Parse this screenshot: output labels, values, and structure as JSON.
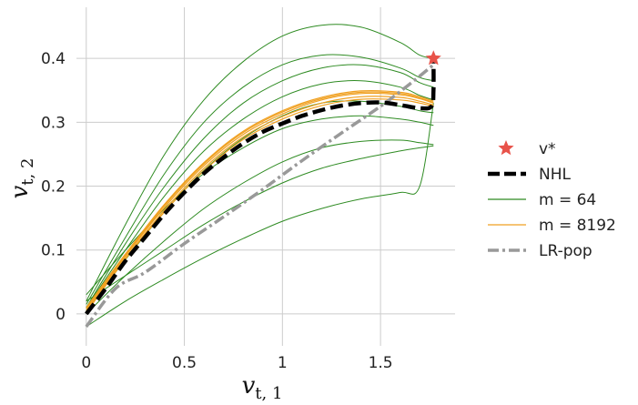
{
  "chart_data": {
    "type": "line",
    "title": "",
    "xlabel": "v_{t,1}",
    "ylabel": "v_{t,2}",
    "x_ticks": [
      "0",
      "0.5",
      "1",
      "1.5"
    ],
    "y_ticks": [
      "0",
      "0.1",
      "0.2",
      "0.3",
      "0.4"
    ],
    "xlim": [
      -0.05,
      1.88
    ],
    "ylim": [
      -0.05,
      0.48
    ],
    "grid": true,
    "legend_position": "right",
    "colors": {
      "star": "#e8534a",
      "nhl": "#000000",
      "m64": "#2e8b22",
      "m8192": "#f0a020",
      "lrpop": "#999999",
      "grid": "#cccccc"
    },
    "legend": [
      {
        "key": "star",
        "label": "v*"
      },
      {
        "key": "nhl",
        "label": "NHL"
      },
      {
        "key": "m64",
        "label": "m = 64"
      },
      {
        "key": "m8192",
        "label": "m = 8192"
      },
      {
        "key": "lrpop",
        "label": "LR-pop"
      }
    ],
    "star_point": {
      "x": 1.77,
      "y": 0.4
    },
    "nhl": {
      "x": [
        0.0,
        0.1,
        0.2,
        0.3,
        0.4,
        0.5,
        0.6,
        0.7,
        0.8,
        0.9,
        1.0,
        1.1,
        1.2,
        1.3,
        1.4,
        1.5,
        1.6,
        1.7,
        1.76,
        1.77,
        1.77
      ],
      "y": [
        0.0,
        0.04,
        0.083,
        0.12,
        0.157,
        0.19,
        0.22,
        0.245,
        0.267,
        0.285,
        0.298,
        0.31,
        0.319,
        0.326,
        0.33,
        0.331,
        0.327,
        0.322,
        0.325,
        0.35,
        0.4
      ]
    },
    "m8192_series": [
      {
        "x": [
          0.0,
          0.2,
          0.4,
          0.6,
          0.8,
          1.0,
          1.2,
          1.4,
          1.6,
          1.7,
          1.77
        ],
        "y": [
          0.005,
          0.09,
          0.167,
          0.232,
          0.281,
          0.313,
          0.335,
          0.345,
          0.343,
          0.337,
          0.33
        ]
      },
      {
        "x": [
          0.0,
          0.2,
          0.4,
          0.6,
          0.8,
          1.0,
          1.2,
          1.4,
          1.6,
          1.7,
          1.77
        ],
        "y": [
          0.01,
          0.094,
          0.172,
          0.237,
          0.286,
          0.318,
          0.339,
          0.349,
          0.347,
          0.34,
          0.333
        ]
      },
      {
        "x": [
          0.0,
          0.2,
          0.4,
          0.6,
          0.8,
          1.0,
          1.2,
          1.4,
          1.6,
          1.7,
          1.77
        ],
        "y": [
          0.003,
          0.087,
          0.163,
          0.228,
          0.277,
          0.309,
          0.33,
          0.34,
          0.339,
          0.333,
          0.327
        ]
      },
      {
        "x": [
          0.0,
          0.2,
          0.4,
          0.6,
          0.8,
          1.0,
          1.2,
          1.4,
          1.6,
          1.7,
          1.77
        ],
        "y": [
          0.008,
          0.092,
          0.17,
          0.235,
          0.284,
          0.316,
          0.337,
          0.347,
          0.345,
          0.338,
          0.331
        ]
      },
      {
        "x": [
          0.0,
          0.2,
          0.4,
          0.6,
          0.8,
          1.0,
          1.2,
          1.4,
          1.6,
          1.7,
          1.77
        ],
        "y": [
          0.002,
          0.086,
          0.16,
          0.224,
          0.273,
          0.305,
          0.326,
          0.336,
          0.335,
          0.33,
          0.325
        ]
      }
    ],
    "m64_series": [
      {
        "x": [
          0.0,
          0.2,
          0.4,
          0.6,
          0.8,
          1.0,
          1.2,
          1.4,
          1.6,
          1.7,
          1.77
        ],
        "y": [
          0.02,
          0.14,
          0.25,
          0.335,
          0.395,
          0.435,
          0.452,
          0.449,
          0.425,
          0.405,
          0.4
        ]
      },
      {
        "x": [
          0.0,
          0.2,
          0.4,
          0.6,
          0.8,
          1.0,
          1.2,
          1.4,
          1.6,
          1.7,
          1.77
        ],
        "y": [
          0.015,
          0.12,
          0.22,
          0.3,
          0.355,
          0.39,
          0.405,
          0.402,
          0.385,
          0.37,
          0.365
        ]
      },
      {
        "x": [
          0.0,
          0.2,
          0.4,
          0.6,
          0.8,
          1.0,
          1.2,
          1.4,
          1.6,
          1.7,
          1.77
        ],
        "y": [
          0.01,
          0.11,
          0.2,
          0.275,
          0.33,
          0.365,
          0.385,
          0.39,
          0.378,
          0.362,
          0.355
        ]
      },
      {
        "x": [
          0.0,
          0.2,
          0.4,
          0.6,
          0.8,
          1.0,
          1.2,
          1.4,
          1.6,
          1.7,
          1.77
        ],
        "y": [
          0.01,
          0.1,
          0.185,
          0.255,
          0.305,
          0.34,
          0.36,
          0.365,
          0.355,
          0.342,
          0.335
        ]
      },
      {
        "x": [
          0.0,
          0.2,
          0.4,
          0.6,
          0.8,
          1.0,
          1.2,
          1.4,
          1.6,
          1.7,
          1.77
        ],
        "y": [
          0.005,
          0.085,
          0.16,
          0.225,
          0.275,
          0.31,
          0.33,
          0.333,
          0.325,
          0.318,
          0.315
        ]
      },
      {
        "x": [
          0.0,
          0.2,
          0.4,
          0.6,
          0.8,
          1.0,
          1.2,
          1.4,
          1.6,
          1.7,
          1.77
        ],
        "y": [
          0.03,
          0.1,
          0.165,
          0.22,
          0.26,
          0.29,
          0.305,
          0.31,
          0.305,
          0.3,
          0.295
        ]
      },
      {
        "x": [
          0.0,
          0.2,
          0.4,
          0.6,
          0.8,
          1.0,
          1.2,
          1.4,
          1.6,
          1.7,
          1.77
        ],
        "y": [
          0.0,
          0.06,
          0.115,
          0.165,
          0.205,
          0.238,
          0.26,
          0.27,
          0.272,
          0.268,
          0.265
        ]
      },
      {
        "x": [
          0.0,
          0.2,
          0.4,
          0.6,
          0.8,
          1.0,
          1.2,
          1.4,
          1.6,
          1.7,
          1.77
        ],
        "y": [
          0.02,
          0.06,
          0.1,
          0.14,
          0.175,
          0.205,
          0.228,
          0.243,
          0.255,
          0.26,
          0.263
        ]
      },
      {
        "x": [
          0.0,
          0.2,
          0.4,
          0.6,
          0.8,
          1.0,
          1.2,
          1.4,
          1.6,
          1.7,
          1.77
        ],
        "y": [
          -0.02,
          0.02,
          0.055,
          0.088,
          0.118,
          0.145,
          0.165,
          0.18,
          0.19,
          0.2,
          0.33
        ]
      }
    ],
    "lrpop": {
      "x": [
        0.0,
        0.15,
        0.3,
        0.5,
        0.7,
        0.9,
        1.1,
        1.3,
        1.5,
        1.65,
        1.77
      ],
      "y": [
        -0.02,
        0.04,
        0.065,
        0.11,
        0.152,
        0.195,
        0.24,
        0.283,
        0.325,
        0.36,
        0.39
      ]
    }
  }
}
